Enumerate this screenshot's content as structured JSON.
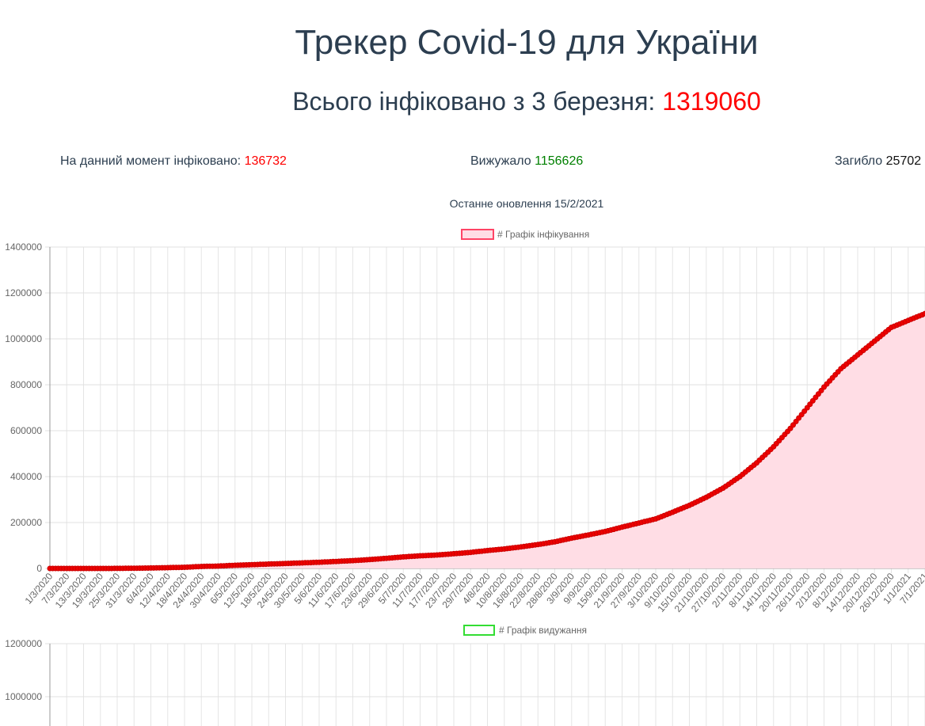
{
  "header": {
    "title": "Трекер Covid-19 для України",
    "total_label": "Всього інфіковано з 3 березня: ",
    "total_value": "1319060"
  },
  "stats": {
    "active_label": "На данний момент інфіковано: ",
    "active_value": "136732",
    "recovered_label": "Вижужало ",
    "recovered_value": "1156626",
    "deaths_label": "Загибло ",
    "deaths_value": "25702"
  },
  "updated": "Останне оновлення 15/2/2021",
  "colors": {
    "accent": "#ff0000",
    "recovered": "#008000",
    "infected_fill": "#ffdde5",
    "recovered_legend": "#33dd33"
  },
  "chart_data": [
    {
      "type": "line",
      "legend": "# Графік інфікування",
      "legend_position": "top",
      "grid": true,
      "ylim": [
        0,
        1400000
      ],
      "yticks": [
        0,
        200000,
        400000,
        600000,
        800000,
        1000000,
        1200000,
        1400000
      ],
      "xtick_labels": [
        "1/3/2020",
        "7/3/2020",
        "13/3/2020",
        "19/3/2020",
        "25/3/2020",
        "31/3/2020",
        "6/4/2020",
        "12/4/2020",
        "18/4/2020",
        "24/4/2020",
        "30/4/2020",
        "6/5/2020",
        "12/5/2020",
        "18/5/2020",
        "24/5/2020",
        "30/5/2020",
        "5/6/2020",
        "11/6/2020",
        "17/6/2020",
        "23/6/2020",
        "29/6/2020",
        "5/7/2020",
        "11/7/2020",
        "17/7/2020",
        "23/7/2020",
        "29/7/2020",
        "4/8/2020",
        "10/8/2020",
        "16/8/2020",
        "22/8/2020",
        "28/8/2020",
        "3/9/2020",
        "9/9/2020",
        "15/9/2020",
        "21/9/2020",
        "27/9/2020",
        "3/10/2020",
        "9/10/2020",
        "15/10/2020",
        "21/10/2020",
        "27/10/2020",
        "2/11/2020",
        "8/11/2020",
        "14/11/2020",
        "20/11/2020",
        "26/11/2020",
        "2/12/2020",
        "8/12/2020",
        "14/12/2020",
        "20/12/2020",
        "26/12/2020",
        "1/1/2021",
        "7/1/2021"
      ],
      "series": [
        {
          "name": "# Графік інфікування",
          "x": [
            "1/3/2020",
            "7/3/2020",
            "13/3/2020",
            "19/3/2020",
            "25/3/2020",
            "31/3/2020",
            "6/4/2020",
            "12/4/2020",
            "18/4/2020",
            "24/4/2020",
            "30/4/2020",
            "6/5/2020",
            "12/5/2020",
            "18/5/2020",
            "24/5/2020",
            "30/5/2020",
            "5/6/2020",
            "11/6/2020",
            "17/6/2020",
            "23/6/2020",
            "29/6/2020",
            "5/7/2020",
            "11/7/2020",
            "17/7/2020",
            "23/7/2020",
            "29/7/2020",
            "4/8/2020",
            "10/8/2020",
            "16/8/2020",
            "22/8/2020",
            "28/8/2020",
            "3/9/2020",
            "9/9/2020",
            "15/9/2020",
            "21/9/2020",
            "27/9/2020",
            "3/10/2020",
            "9/10/2020",
            "15/10/2020",
            "21/10/2020",
            "27/10/2020",
            "2/11/2020",
            "8/11/2020",
            "14/11/2020",
            "20/11/2020",
            "26/11/2020",
            "2/12/2020",
            "8/12/2020",
            "14/12/2020",
            "20/12/2020",
            "26/12/2020",
            "1/1/2021",
            "7/1/2021"
          ],
          "values": [
            0,
            1,
            3,
            47,
            218,
            900,
            2000,
            3400,
            5100,
            8600,
            10400,
            13700,
            16400,
            19200,
            21600,
            24300,
            27000,
            30500,
            34000,
            38600,
            44300,
            50400,
            55000,
            58500,
            64000,
            70000,
            78000,
            85000,
            94000,
            104000,
            116000,
            132000,
            146000,
            161000,
            180000,
            198000,
            216000,
            245000,
            275000,
            310000,
            350000,
            400000,
            460000,
            530000,
            610000,
            700000,
            790000,
            870000,
            930000,
            990000,
            1050000,
            1080000,
            1110000
          ]
        }
      ]
    },
    {
      "type": "line",
      "legend": "# Графік видужання",
      "legend_position": "top",
      "grid": true,
      "ylim": [
        0,
        1200000
      ],
      "yticks": [
        1000000,
        1200000
      ],
      "series": [
        {
          "name": "# Графік видужання",
          "x": [],
          "values": []
        }
      ]
    }
  ]
}
